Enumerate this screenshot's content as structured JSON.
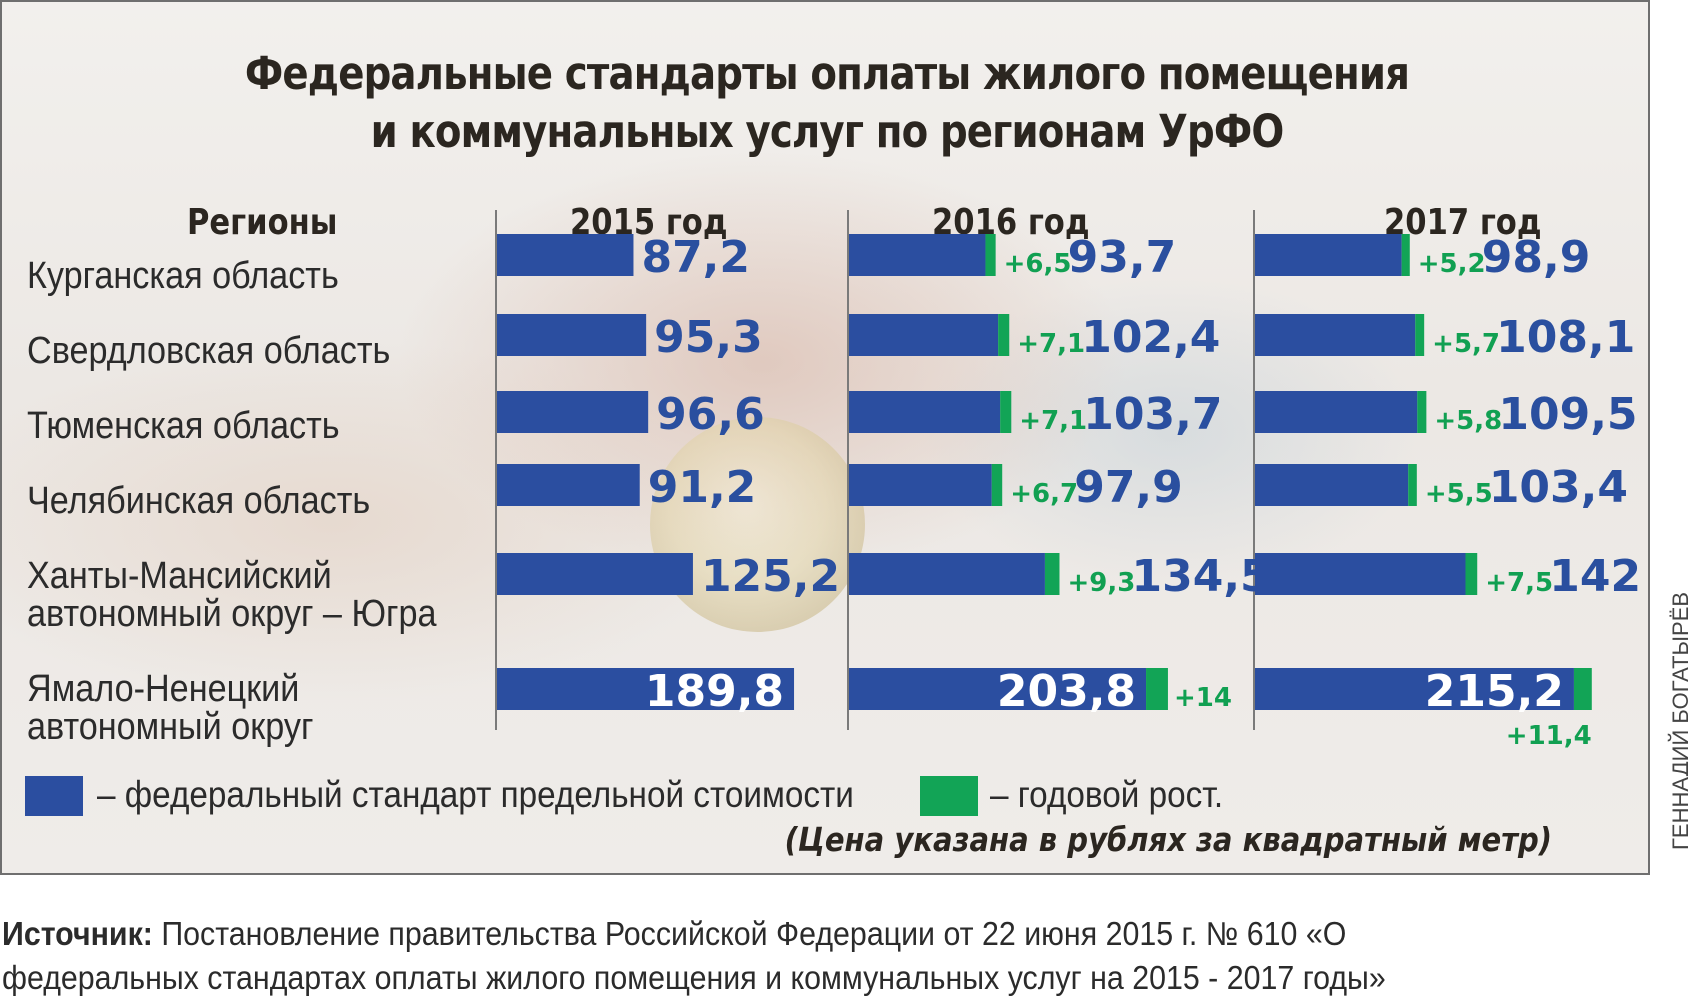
{
  "title_line1": "Федеральные стандарты оплаты жилого помещения",
  "title_line2": "и коммунальных услуг по регионам УрФО",
  "regions_header": "Регионы",
  "credit": "ГЕННАДИЙ БОГАТЫРЁВ",
  "note": "(Цена указана в рублях за квадратный метр)",
  "legend": {
    "standard_label": "– федеральный стандарт предельной стоимости",
    "growth_label": "– годовой рост.",
    "standard_color": "#2b4ea0",
    "growth_color": "#12a456"
  },
  "source": {
    "label": "Источник:",
    "text": " Постановление правительства Российской Федерации от 22 июня 2015 г. № 610 «О федеральных стандартах оплаты жилого помещения и коммунальных услуг на 2015 - 2017 годы»"
  },
  "chart_data": {
    "type": "bar",
    "title": "Федеральные стандарты оплаты жилого помещения и коммунальных услуг по регионам УрФО",
    "unit": "рублей за квадратный метр",
    "years": [
      "2015 год",
      "2016 год",
      "2017 год"
    ],
    "categories": [
      "Курганская область",
      "Свердловская область",
      "Тюменская область",
      "Челябинская область",
      "Ханты-Мансийский автономный округ – Югра",
      "Ямало-Ненецкий автономный округ"
    ],
    "category_lines": [
      [
        "Курганская область"
      ],
      [
        "Свердловская область"
      ],
      [
        "Тюменская область"
      ],
      [
        "Челябинская область"
      ],
      [
        "Ханты-Мансийский",
        "автономный округ – Югра"
      ],
      [
        "Ямало-Ненецкий",
        "автономный округ"
      ]
    ],
    "series": [
      {
        "name": "федеральный стандарт предельной стоимости",
        "values_2015": [
          87.2,
          95.3,
          96.6,
          91.2,
          125.2,
          189.8
        ],
        "values_2016": [
          93.7,
          102.4,
          103.7,
          97.9,
          134.5,
          203.8
        ],
        "values_2017": [
          98.9,
          108.1,
          109.5,
          103.4,
          142,
          215.2
        ]
      },
      {
        "name": "годовой рост",
        "growth_2016": [
          6.5,
          7.1,
          7.1,
          6.7,
          9.3,
          14
        ],
        "growth_2017": [
          5.2,
          5.7,
          5.8,
          5.5,
          7.5,
          11.4
        ]
      }
    ],
    "value_labels": {
      "2015": [
        "87,2",
        "95,3",
        "96,6",
        "91,2",
        "125,2",
        "189,8"
      ],
      "2016": [
        "93,7",
        "102,4",
        "103,7",
        "97,9",
        "134,5",
        "203,8"
      ],
      "2017": [
        "98,9",
        "108,1",
        "109,5",
        "103,4",
        "142",
        "215,2"
      ],
      "growth_2016": [
        "+6,5",
        "+7,1",
        "+7,1",
        "+6,7",
        "+9,3",
        "+14"
      ],
      "growth_2017": [
        "+5,2",
        "+5,7",
        "+5,8",
        "+5,5",
        "+7,5",
        "+11,4"
      ]
    }
  }
}
